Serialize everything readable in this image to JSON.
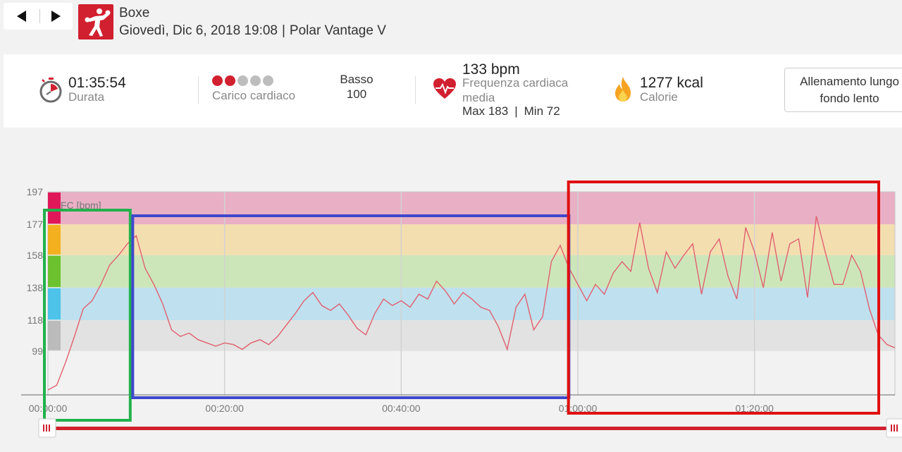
{
  "header": {
    "sport": "Boxe",
    "date_time": "Giovedì, Dic 6, 2018 19:08",
    "device": "Polar Vantage V",
    "separator": "|"
  },
  "summary": {
    "duration_value": "01:35:54",
    "duration_label": "Durata",
    "cardio_load_label": "Carico cardiaco",
    "cardio_load_dots": [
      "filled",
      "filled",
      "empty",
      "empty",
      "empty"
    ],
    "cardio_load_level": "Basso",
    "cardio_load_value": "100",
    "hr_value": "133 bpm",
    "hr_label_1": "Frequenza cardiaca",
    "hr_label_2": "media",
    "hr_max": "Max 183",
    "hr_min": "Min 72",
    "hr_separator": "|",
    "calories_value": "1277 kcal",
    "calories_label": "Calorie",
    "training_benefit_line1": "Allenamento lungo",
    "training_benefit_line2": "fondo lento"
  },
  "colors": {
    "brand_red": "#d1202f",
    "dot_filled": "#d1202f",
    "dot_empty": "#bdbdbd",
    "line": "#e06070",
    "zone5": "#e9b0c5",
    "zone4": "#f3deb0",
    "zone3": "#cde6b9",
    "zone2": "#bfe0ee",
    "zone1": "#e2e2e2",
    "zone5_tab": "#e0185a",
    "zone4_tab": "#f4b01f",
    "zone3_tab": "#6cc22e",
    "zone2_tab": "#4dc3ea",
    "zone1_tab": "#bbbbbb",
    "box_green": "#22b14c",
    "box_blue": "#3f48cc",
    "box_red": "#e01010"
  },
  "icons": {
    "nav_prev": "triangle-left-icon",
    "nav_next": "triangle-right-icon",
    "sport": "boxing-icon",
    "duration": "stopwatch-icon",
    "heart": "heart-rate-icon",
    "calories": "flame-icon",
    "range_handle": "slider-grip-icon"
  },
  "chart_data": {
    "type": "line",
    "series_label": "FC [bpm]",
    "xlim_seconds": [
      0,
      5754
    ],
    "ylim": [
      72,
      197
    ],
    "x_ticks": [
      "00:00:00",
      "00:20:00",
      "00:40:00",
      "01:00:00",
      "01:20:00"
    ],
    "x_tick_seconds": [
      0,
      1200,
      2400,
      3600,
      4800
    ],
    "y_ticks": [
      197,
      177,
      158,
      138,
      118,
      99
    ],
    "zones": [
      {
        "zone": 5,
        "from": 177,
        "to": 197
      },
      {
        "zone": 4,
        "from": 158,
        "to": 177
      },
      {
        "zone": 3,
        "from": 138,
        "to": 158
      },
      {
        "zone": 2,
        "from": 118,
        "to": 138
      },
      {
        "zone": 1,
        "from": 99,
        "to": 118
      }
    ],
    "grid": "vertical",
    "x_seconds": [
      0,
      60,
      120,
      180,
      240,
      300,
      360,
      420,
      480,
      540,
      600,
      660,
      720,
      780,
      840,
      900,
      960,
      1020,
      1080,
      1140,
      1200,
      1260,
      1320,
      1380,
      1440,
      1500,
      1560,
      1620,
      1680,
      1740,
      1800,
      1860,
      1920,
      1980,
      2040,
      2100,
      2160,
      2220,
      2280,
      2340,
      2400,
      2460,
      2520,
      2580,
      2640,
      2700,
      2760,
      2820,
      2880,
      2940,
      3000,
      3060,
      3120,
      3180,
      3240,
      3300,
      3360,
      3420,
      3480,
      3540,
      3600,
      3660,
      3720,
      3780,
      3840,
      3900,
      3960,
      4020,
      4080,
      4140,
      4200,
      4260,
      4320,
      4380,
      4440,
      4500,
      4560,
      4620,
      4680,
      4740,
      4800,
      4860,
      4920,
      4980,
      5040,
      5100,
      5160,
      5220,
      5280,
      5340,
      5400,
      5460,
      5520,
      5580,
      5640,
      5700,
      5754
    ],
    "bpm": [
      75,
      78,
      92,
      108,
      125,
      130,
      140,
      152,
      158,
      165,
      170,
      150,
      140,
      128,
      112,
      108,
      110,
      106,
      104,
      102,
      104,
      103,
      100,
      104,
      106,
      103,
      108,
      115,
      122,
      130,
      135,
      127,
      124,
      128,
      121,
      113,
      109,
      122,
      131,
      127,
      130,
      126,
      134,
      131,
      142,
      136,
      128,
      135,
      131,
      126,
      124,
      114,
      100,
      126,
      134,
      112,
      120,
      154,
      164,
      150,
      140,
      130,
      140,
      134,
      147,
      154,
      148,
      178,
      150,
      135,
      160,
      150,
      158,
      165,
      134,
      160,
      168,
      145,
      131,
      175,
      160,
      138,
      172,
      142,
      165,
      168,
      132,
      182,
      160,
      140,
      140,
      158,
      148,
      125,
      109,
      103,
      101
    ],
    "annotations": [
      {
        "shape": "rectangle",
        "color": "green",
        "x_from": 0,
        "x_to": 540
      },
      {
        "shape": "rectangle",
        "color": "blue",
        "x_from": 600,
        "x_to": 3520
      },
      {
        "shape": "rectangle",
        "color": "red",
        "x_from": 3560,
        "x_to": 5754
      }
    ]
  }
}
